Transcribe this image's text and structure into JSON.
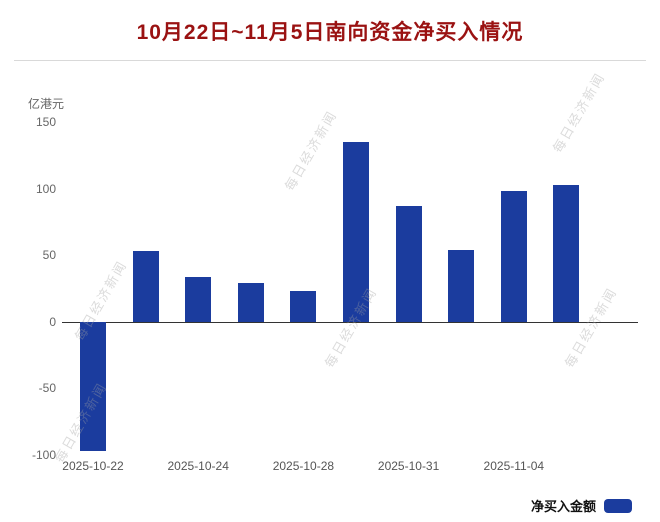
{
  "watermark_text": "每日经济新闻",
  "colors": {
    "title": "#9a1212",
    "bar": "#1b3c9e",
    "zero_line": "#333333",
    "tick_text": "#666666",
    "watermark": "#c0c0c0"
  },
  "legend": {
    "label": "净买入金额"
  },
  "chart_data": {
    "type": "bar",
    "title": "10月22日~11月5日南向资金净买入情况",
    "ylabel": "亿港元",
    "ylim": [
      -100,
      150
    ],
    "y_ticks": [
      150,
      100,
      50,
      0,
      -50,
      -100
    ],
    "grid": false,
    "legend": [
      "净买入金额"
    ],
    "legend_position": "bottom-right",
    "values": [
      -97,
      53,
      34,
      29,
      23,
      135,
      87,
      54,
      98,
      103
    ],
    "x_tick_labels": [
      {
        "index": 0,
        "label": "2025-10-22"
      },
      {
        "index": 2,
        "label": "2025-10-24"
      },
      {
        "index": 4,
        "label": "2025-10-28"
      },
      {
        "index": 6,
        "label": "2025-10-31"
      },
      {
        "index": 8,
        "label": "2025-11-04"
      }
    ]
  }
}
